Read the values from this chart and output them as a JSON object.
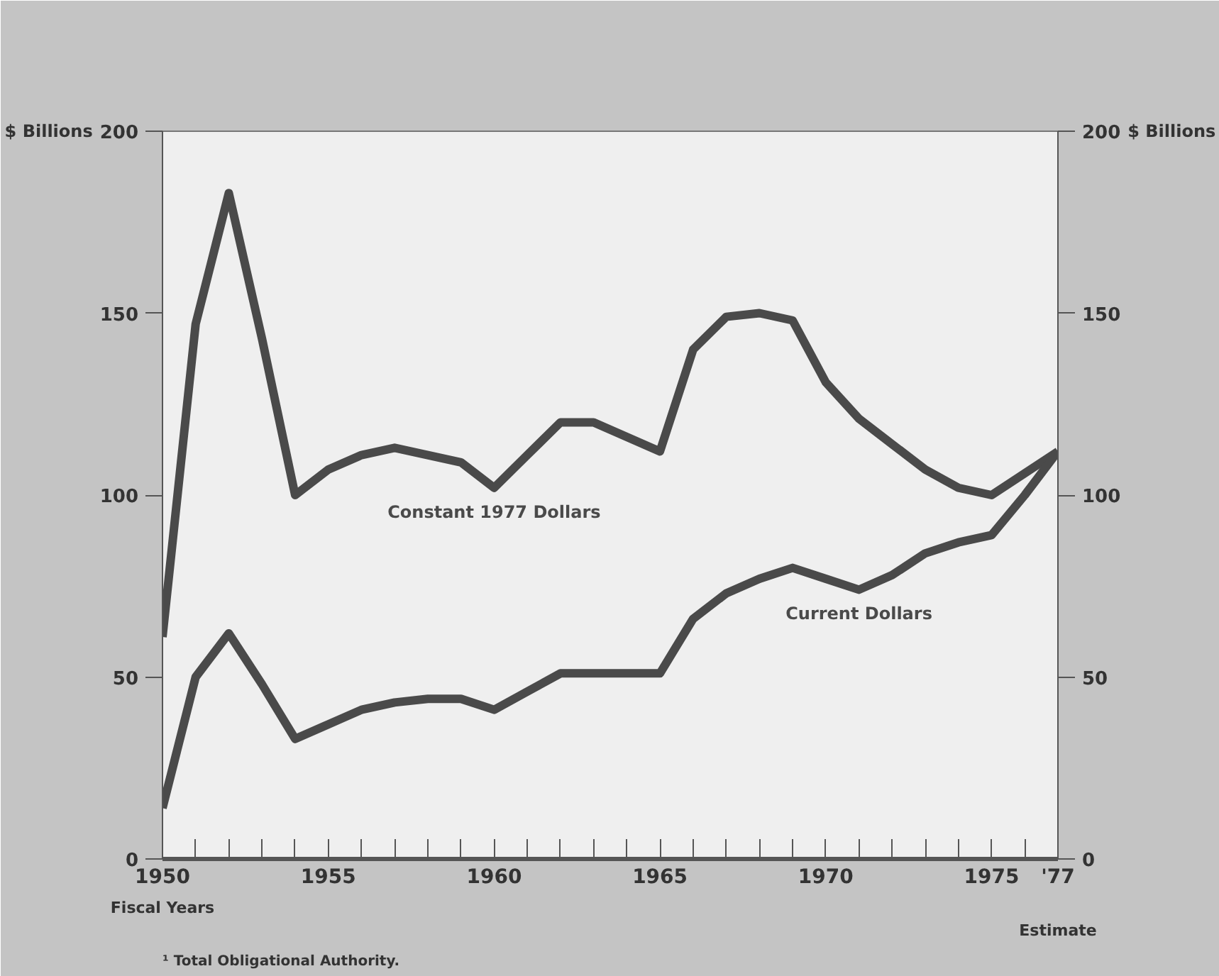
{
  "chart_data": {
    "type": "line",
    "x": [
      1950,
      1951,
      1952,
      1953,
      1954,
      1955,
      1956,
      1957,
      1958,
      1959,
      1960,
      1961,
      1962,
      1963,
      1964,
      1965,
      1966,
      1967,
      1968,
      1969,
      1970,
      1971,
      1972,
      1973,
      1974,
      1975,
      1976,
      1977
    ],
    "series": [
      {
        "name": "Constant 1977 Dollars",
        "color": "#4a4a4a",
        "values": [
          61,
          147,
          183,
          143,
          100,
          107,
          111,
          113,
          111,
          109,
          102,
          111,
          120,
          120,
          116,
          112,
          140,
          149,
          150,
          148,
          131,
          121,
          114,
          107,
          102,
          100,
          106,
          112
        ]
      },
      {
        "name": "Current Dollars",
        "color": "#4a4a4a",
        "values": [
          14,
          50,
          62,
          48,
          33,
          37,
          41,
          43,
          44,
          44,
          41,
          46,
          51,
          51,
          51,
          51,
          66,
          73,
          77,
          80,
          77,
          74,
          78,
          84,
          87,
          89,
          100,
          112
        ]
      }
    ],
    "xlabel": "Fiscal Years",
    "ylabel": "$ Billions",
    "y2label": "$ Billions",
    "xlim": [
      1950,
      1977
    ],
    "xticks": [
      1950,
      {
        "value": 1951,
        "label": null
      },
      {
        "value": 1952,
        "label": null
      },
      {
        "value": 1953,
        "label": null
      },
      {
        "value": 1954,
        "label": null
      },
      1955,
      {
        "value": 1956,
        "label": null
      },
      {
        "value": 1957,
        "label": null
      },
      {
        "value": 1958,
        "label": null
      },
      {
        "value": 1959,
        "label": null
      },
      1960,
      {
        "value": 1961,
        "label": null
      },
      {
        "value": 1962,
        "label": null
      },
      {
        "value": 1963,
        "label": null
      },
      {
        "value": 1964,
        "label": null
      },
      1965,
      {
        "value": 1966,
        "label": null
      },
      {
        "value": 1967,
        "label": null
      },
      {
        "value": 1968,
        "label": null
      },
      {
        "value": 1969,
        "label": null
      },
      1970,
      {
        "value": 1971,
        "label": null
      },
      {
        "value": 1972,
        "label": null
      },
      {
        "value": 1973,
        "label": null
      },
      {
        "value": 1974,
        "label": null
      },
      1975,
      {
        "value": 1976,
        "label": null
      },
      {
        "value": 1977,
        "label": "'77"
      }
    ],
    "ylim": [
      0,
      200
    ],
    "yticks": [
      0,
      50,
      100,
      150,
      200
    ],
    "y2lim": [
      0,
      200
    ],
    "y2ticks": [
      0,
      50,
      100,
      150,
      200
    ],
    "annotations": [
      "Estimate",
      "¹ Total Obligational Authority."
    ],
    "grid": false,
    "marker": "none",
    "line_style": "solid"
  }
}
